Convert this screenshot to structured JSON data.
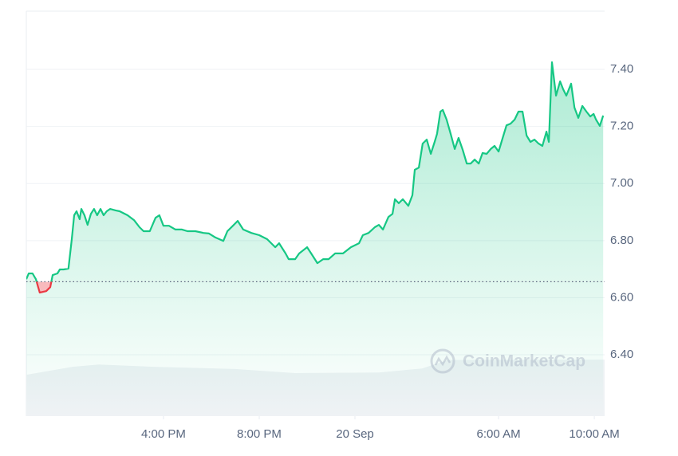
{
  "chart_data": {
    "type": "line",
    "watermark": "CoinMarketCap",
    "x": [
      10.27,
      10.37,
      10.53,
      10.67,
      10.83,
      11.1,
      11.27,
      11.37,
      11.57,
      11.67,
      11.83,
      12.03,
      12.17,
      12.27,
      12.37,
      12.5,
      12.57,
      12.7,
      12.83,
      12.97,
      13.1,
      13.23,
      13.37,
      13.5,
      13.63,
      13.77,
      14.0,
      14.17,
      14.5,
      14.77,
      15.0,
      15.17,
      15.43,
      15.67,
      15.83,
      16.0,
      16.23,
      16.5,
      16.77,
      17.0,
      17.33,
      17.67,
      17.9,
      18.17,
      18.5,
      18.67,
      18.9,
      19.1,
      19.33,
      19.67,
      20.0,
      20.33,
      20.67,
      20.83,
      21.1,
      21.23,
      21.5,
      21.67,
      22.0,
      22.17,
      22.43,
      22.67,
      22.9,
      23.17,
      23.5,
      23.83,
      24.17,
      24.33,
      24.57,
      24.83,
      25.0,
      25.17,
      25.4,
      25.57,
      25.67,
      25.83,
      26.0,
      26.23,
      26.4,
      26.5,
      26.67,
      26.83,
      27.0,
      27.17,
      27.33,
      27.43,
      27.57,
      27.67,
      27.83,
      28.0,
      28.17,
      28.33,
      28.5,
      28.67,
      28.83,
      29.0,
      29.17,
      29.33,
      29.5,
      29.67,
      29.83,
      30.0,
      30.17,
      30.33,
      30.5,
      30.67,
      30.83,
      31.0,
      31.17,
      31.33,
      31.5,
      31.67,
      31.83,
      32.0,
      32.1,
      32.23,
      32.4,
      32.57,
      32.7,
      32.83,
      33.03,
      33.17,
      33.33,
      33.5,
      33.67,
      33.83,
      33.97,
      34.07,
      34.23,
      34.37
    ],
    "series": [
      {
        "color": "#16c784",
        "values": [
          6.665,
          6.685,
          6.685,
          6.665,
          6.618,
          6.623,
          6.637,
          6.679,
          6.685,
          6.699,
          6.699,
          6.702,
          6.805,
          6.889,
          6.903,
          6.875,
          6.911,
          6.889,
          6.855,
          6.894,
          6.911,
          6.889,
          6.911,
          6.889,
          6.903,
          6.911,
          6.906,
          6.903,
          6.889,
          6.872,
          6.847,
          6.833,
          6.833,
          6.88,
          6.889,
          6.852,
          6.852,
          6.839,
          6.839,
          6.833,
          6.833,
          6.827,
          6.825,
          6.811,
          6.799,
          6.833,
          6.852,
          6.869,
          6.839,
          6.827,
          6.819,
          6.805,
          6.777,
          6.791,
          6.755,
          6.735,
          6.735,
          6.755,
          6.777,
          6.755,
          6.721,
          6.735,
          6.735,
          6.755,
          6.755,
          6.777,
          6.791,
          6.819,
          6.827,
          6.847,
          6.855,
          6.839,
          6.883,
          6.894,
          6.945,
          6.931,
          6.945,
          6.922,
          6.959,
          7.048,
          7.056,
          7.14,
          7.154,
          7.104,
          7.146,
          7.174,
          7.252,
          7.258,
          7.224,
          7.174,
          7.121,
          7.16,
          7.118,
          7.07,
          7.07,
          7.084,
          7.07,
          7.107,
          7.104,
          7.121,
          7.132,
          7.112,
          7.16,
          7.204,
          7.21,
          7.224,
          7.252,
          7.252,
          7.168,
          7.146,
          7.154,
          7.14,
          7.132,
          7.182,
          7.146,
          7.425,
          7.308,
          7.358,
          7.33,
          7.308,
          7.35,
          7.266,
          7.23,
          7.272,
          7.252,
          7.235,
          7.244,
          7.224,
          7.202,
          7.238
        ]
      }
    ],
    "down_color": "#ea3943",
    "baseline": 6.656,
    "volume": {
      "color": "#eff2f5",
      "x": [
        10.27,
        12.2,
        13.3,
        15.6,
        19.0,
        21.5,
        25.0,
        26.8,
        27.9,
        34.43
      ],
      "values": [
        6.33,
        6.358,
        6.366,
        6.358,
        6.35,
        6.336,
        6.338,
        6.352,
        6.382,
        6.383
      ]
    },
    "xlim": [
      10.27,
      34.43
    ],
    "xticks": [
      {
        "value": 16,
        "label": "4:00 PM"
      },
      {
        "value": 20,
        "label": "8:00 PM"
      },
      {
        "value": 24,
        "label": "20 Sep"
      },
      {
        "value": 30,
        "label": "6:00 AM"
      },
      {
        "value": 34,
        "label": "10:00 AM"
      }
    ],
    "ylim": [
      6.185,
      7.604
    ],
    "yticks": [
      {
        "value": 6.4,
        "label": "6.40"
      },
      {
        "value": 6.6,
        "label": "6.60"
      },
      {
        "value": 6.8,
        "label": "6.80"
      },
      {
        "value": 7.0,
        "label": "7.00"
      },
      {
        "value": 7.2,
        "label": "7.20"
      },
      {
        "value": 7.4,
        "label": "7.40"
      }
    ],
    "grid": true
  }
}
